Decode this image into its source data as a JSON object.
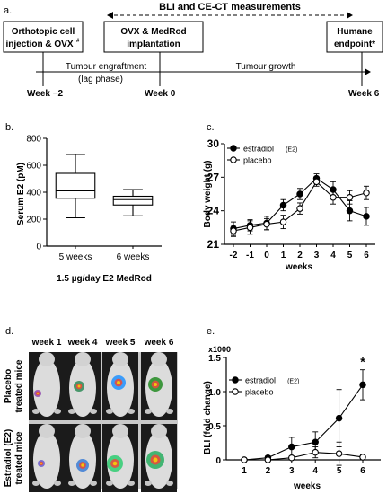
{
  "panels": {
    "a": "a.",
    "b": "b.",
    "c": "c.",
    "d": "d.",
    "e": "e."
  },
  "timeline": {
    "header": "BLI and CE-CT measurements",
    "box1_line1": "Orthotopic cell",
    "box1_line2": "injection & OVX",
    "box1_sup": "#",
    "box2_line1": "OVX  & MedRod",
    "box2_line2": "implantation",
    "box3_line1": "Humane",
    "box3_line2": "endpoint*",
    "phase1_line1": "Tumour engraftment",
    "phase1_line2": "(lag phase)",
    "phase2": "Tumour growth",
    "week_a": "Week −2",
    "week_b": "Week 0",
    "week_c": "Week 6"
  },
  "imaging": {
    "cols": [
      "week 1",
      "week 4",
      "week 5",
      "week 6"
    ],
    "row1_line1": "Placebo",
    "row1_line2": "treated mice",
    "row2_line1": "Estradiol (E2)",
    "row2_line2": "treated mice"
  },
  "chart_data": [
    {
      "id": "b",
      "type": "box",
      "ylabel": "Serum E2 (pM)",
      "xlabel": "1.5 µg/day E2 MedRod",
      "categories": [
        "5 weeks",
        "6 weeks"
      ],
      "ylim": [
        0,
        800
      ],
      "yticks": [
        "0",
        "200",
        "400",
        "600",
        "800"
      ],
      "boxes": [
        {
          "min": 210,
          "q1": 355,
          "median": 410,
          "q3": 540,
          "max": 680
        },
        {
          "min": 225,
          "q1": 305,
          "median": 345,
          "q3": 370,
          "max": 420
        }
      ]
    },
    {
      "id": "c",
      "type": "line",
      "ylabel": "Body weight (g)",
      "xlabel": "weeks",
      "x": [
        -2,
        -1,
        0,
        1,
        2,
        3,
        4,
        5,
        6
      ],
      "xticks": [
        "-2",
        "-1",
        "0",
        "1",
        "2",
        "3",
        "4",
        "5",
        "6"
      ],
      "ylim": [
        21,
        30
      ],
      "yticks": [
        "21",
        "24",
        "27",
        "30"
      ],
      "series": [
        {
          "name": "estradiol",
          "name_sub": "(E2)",
          "filled": true,
          "values": [
            22.4,
            22.7,
            22.9,
            24.5,
            25.5,
            26.9,
            25.9,
            24.0,
            23.5
          ],
          "err": [
            0.6,
            0.5,
            0.6,
            0.5,
            0.5,
            0.4,
            0.7,
            0.9,
            0.8
          ]
        },
        {
          "name": "placebo",
          "name_sub": "",
          "filled": false,
          "values": [
            22.2,
            22.5,
            22.8,
            23.0,
            24.2,
            26.6,
            25.2,
            25.2,
            25.6
          ],
          "err": [
            0.5,
            0.6,
            0.5,
            0.6,
            0.5,
            0.4,
            0.6,
            0.6,
            0.6
          ]
        }
      ]
    },
    {
      "id": "e",
      "type": "line",
      "ylabel": "BLI (fold change)",
      "xlabel": "weeks",
      "multiplier": "x1000",
      "x": [
        1,
        2,
        3,
        4,
        5,
        6
      ],
      "xticks": [
        "1",
        "2",
        "3",
        "4",
        "5",
        "6"
      ],
      "ylim": [
        0,
        1.5
      ],
      "yticks": [
        "0",
        "0.5",
        "1.0",
        "1.5"
      ],
      "annotation": "*",
      "series": [
        {
          "name": "estradiol",
          "name_sub": "(E2)",
          "filled": true,
          "values": [
            0.0,
            0.03,
            0.19,
            0.26,
            0.61,
            1.1
          ],
          "err": [
            0.0,
            0.03,
            0.14,
            0.15,
            0.42,
            0.22
          ]
        },
        {
          "name": "placebo",
          "name_sub": "",
          "filled": false,
          "values": [
            0.0,
            0.0,
            0.03,
            0.11,
            0.09,
            0.04
          ],
          "err": [
            0.0,
            0.0,
            0.02,
            0.08,
            0.17,
            0.03
          ]
        }
      ]
    }
  ]
}
